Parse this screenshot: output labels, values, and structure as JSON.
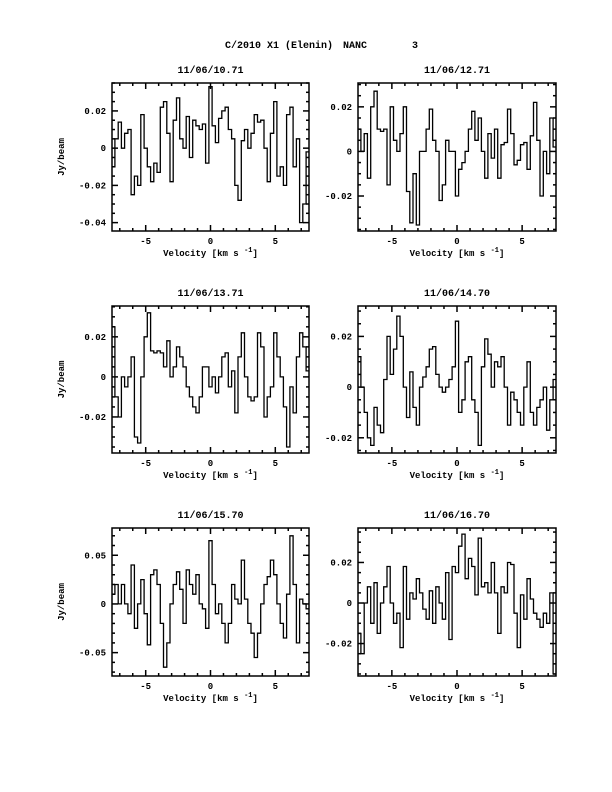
{
  "header": {
    "object": "C/2010 X1 (Elenin)",
    "molecule": "NANC",
    "index": "3"
  },
  "chart_data": [
    {
      "type": "line",
      "step": true,
      "title": "11/06/10.71",
      "xlabel": "Velocity [km s-1]",
      "ylabel": "Jy/beam",
      "xlim": [
        -7.6,
        7.6
      ],
      "ylim": [
        -0.0445,
        0.035
      ],
      "xticks": [
        -5,
        0,
        5
      ],
      "xtick_labels": [
        "-5",
        "0",
        "5"
      ],
      "yticks": [
        -0.04,
        -0.02,
        0,
        0.02
      ],
      "ytick_labels": [
        "-0.04",
        "-0.02",
        "0",
        "0.02"
      ],
      "yminor": 0.005,
      "x_start": -7.5,
      "x_step": 0.25,
      "values": [
        -0.01,
        0.005,
        0.014,
        0.0,
        0.008,
        0.01,
        -0.025,
        -0.015,
        -0.02,
        0.018,
        0.0,
        -0.01,
        -0.018,
        -0.008,
        -0.013,
        0.022,
        0.025,
        0.008,
        -0.018,
        0.015,
        0.027,
        0.005,
        0.0,
        0.017,
        -0.005,
        0.015,
        0.012,
        0.01,
        0.013,
        -0.008,
        0.033,
        0.012,
        0.003,
        0.016,
        0.02,
        0.022,
        0.01,
        0.005,
        -0.02,
        -0.028,
        0.004,
        0.01,
        0.0,
        0.008,
        0.018,
        0.014,
        0.015,
        0.0,
        -0.018,
        0.008,
        0.025,
        -0.015,
        -0.01,
        -0.02,
        0.018,
        0.022,
        -0.01,
        0.005,
        -0.04,
        -0.03,
        -0.002
      ]
    },
    {
      "type": "line",
      "step": true,
      "title": "11/06/12.71",
      "xlabel": "Velocity [km s-1]",
      "ylabel": "",
      "xlim": [
        -7.6,
        7.6
      ],
      "ylim": [
        -0.0357,
        0.0307
      ],
      "xticks": [
        -5,
        0,
        5
      ],
      "xtick_labels": [
        "-5",
        "0",
        "5"
      ],
      "yticks": [
        -0.02,
        0,
        0.02
      ],
      "ytick_labels": [
        "-0.02",
        "0",
        "0.02"
      ],
      "yminor": 0.005,
      "x_start": -7.5,
      "x_step": 0.25,
      "values": [
        0.01,
        0.0,
        0.008,
        -0.012,
        0.02,
        0.027,
        0.01,
        0.009,
        0.01,
        -0.015,
        0.02,
        0.005,
        0.0,
        0.008,
        0.02,
        -0.018,
        -0.032,
        -0.01,
        -0.033,
        0.0,
        0.0,
        0.01,
        0.019,
        0.005,
        0.0,
        -0.022,
        -0.015,
        0.005,
        0.0,
        0.0,
        -0.02,
        -0.008,
        -0.005,
        0.0,
        0.01,
        0.018,
        0.005,
        0.015,
        0.0,
        -0.012,
        0.008,
        -0.003,
        0.01,
        -0.012,
        0.003,
        0.004,
        0.019,
        0.008,
        -0.006,
        -0.004,
        0.003,
        0.004,
        -0.008,
        0.007,
        0.022,
        0.005,
        -0.02,
        0.0,
        -0.01,
        0.015,
        0.002
      ]
    },
    {
      "type": "line",
      "step": true,
      "title": "11/06/13.71",
      "xlabel": "Velocity [km s-1]",
      "ylabel": "Jy/beam",
      "xlim": [
        -7.6,
        7.6
      ],
      "ylim": [
        -0.038,
        0.0354
      ],
      "xticks": [
        -5,
        0,
        5
      ],
      "xtick_labels": [
        "-5",
        "0",
        "5"
      ],
      "yticks": [
        -0.02,
        0,
        0.02
      ],
      "ytick_labels": [
        "-0.02",
        "0",
        "0.02"
      ],
      "yminor": 0.005,
      "x_start": -7.5,
      "x_step": 0.25,
      "values": [
        0.025,
        -0.01,
        -0.02,
        0.0,
        -0.005,
        0.0,
        0.01,
        -0.03,
        -0.033,
        0.0,
        0.02,
        0.032,
        0.013,
        0.012,
        0.013,
        0.012,
        0.005,
        0.018,
        0.0,
        0.005,
        0.015,
        0.01,
        0.005,
        -0.005,
        -0.01,
        -0.015,
        -0.018,
        -0.01,
        0.005,
        0.005,
        -0.005,
        0.0,
        -0.008,
        0.0,
        0.01,
        0.012,
        -0.005,
        0.003,
        -0.018,
        0.01,
        0.022,
        0.0,
        -0.01,
        -0.012,
        -0.01,
        0.022,
        0.015,
        -0.02,
        -0.01,
        -0.005,
        0.022,
        0.01,
        0.0,
        -0.015,
        -0.035,
        -0.005,
        -0.018,
        0.01,
        0.022,
        0.015,
        0.003
      ]
    },
    {
      "type": "line",
      "step": true,
      "title": "11/06/14.70",
      "xlabel": "Velocity [km s-1]",
      "ylabel": "",
      "xlim": [
        -7.6,
        7.6
      ],
      "ylim": [
        -0.026,
        0.032
      ],
      "xticks": [
        -5,
        0,
        5
      ],
      "xtick_labels": [
        "-5",
        "0",
        "5"
      ],
      "yticks": [
        -0.02,
        0,
        0.02
      ],
      "ytick_labels": [
        "-0.02",
        "0",
        "0.02"
      ],
      "yminor": 0.005,
      "x_start": -7.5,
      "x_step": 0.25,
      "values": [
        0.012,
        0.0,
        -0.01,
        -0.02,
        -0.023,
        -0.008,
        -0.015,
        -0.018,
        0.003,
        0.02,
        0.005,
        0.015,
        0.028,
        0.02,
        0.0,
        -0.012,
        0.006,
        -0.008,
        -0.015,
        0.0,
        0.004,
        0.008,
        0.015,
        0.016,
        0.005,
        0.0,
        -0.002,
        0.0,
        0.003,
        0.008,
        0.026,
        -0.01,
        -0.005,
        0.01,
        0.012,
        -0.005,
        -0.01,
        -0.023,
        0.008,
        0.019,
        0.013,
        0.0,
        0.01,
        0.008,
        0.012,
        0.0,
        -0.015,
        -0.002,
        -0.005,
        -0.01,
        -0.015,
        0.0,
        0.01,
        -0.01,
        -0.015,
        -0.008,
        -0.005,
        0.0,
        -0.017,
        -0.005,
        0.003
      ]
    },
    {
      "type": "line",
      "step": true,
      "title": "11/06/15.70",
      "xlabel": "Velocity [km s-1]",
      "ylabel": "Jy/beam",
      "xlim": [
        -7.6,
        7.6
      ],
      "ylim": [
        -0.074,
        0.078
      ],
      "xticks": [
        -5,
        0,
        5
      ],
      "xtick_labels": [
        "-5",
        "0",
        "5"
      ],
      "yticks": [
        -0.05,
        0,
        0.05
      ],
      "ytick_labels": [
        "-0.05",
        "0",
        "0.05"
      ],
      "yminor": 0.01,
      "x_start": -7.5,
      "x_step": 0.25,
      "values": [
        0.01,
        0.02,
        0.0,
        0.02,
        0.0,
        -0.01,
        0.04,
        -0.025,
        0.0,
        0.025,
        -0.01,
        -0.042,
        0.03,
        0.035,
        0.02,
        -0.02,
        -0.065,
        -0.04,
        0.0,
        0.02,
        0.033,
        0.015,
        -0.02,
        0.035,
        0.02,
        0.01,
        0.03,
        0.0,
        -0.005,
        -0.025,
        0.065,
        0.02,
        -0.01,
        0.0,
        -0.02,
        -0.04,
        -0.02,
        0.02,
        0.005,
        0.0,
        0.045,
        0.005,
        -0.02,
        -0.03,
        -0.055,
        -0.03,
        0.0,
        0.02,
        0.028,
        0.045,
        0.03,
        0.0,
        -0.02,
        -0.035,
        0.01,
        0.07,
        0.02,
        -0.04,
        0.005,
        0.0,
        -0.005
      ]
    },
    {
      "type": "line",
      "step": true,
      "title": "11/06/16.70",
      "xlabel": "Velocity [km s-1]",
      "ylabel": "",
      "xlim": [
        -7.6,
        7.6
      ],
      "ylim": [
        -0.036,
        0.037
      ],
      "xticks": [
        -5,
        0,
        5
      ],
      "xtick_labels": [
        "-5",
        "0",
        "5"
      ],
      "yticks": [
        -0.02,
        0,
        0.02
      ],
      "ytick_labels": [
        "-0.02",
        "0",
        "0.02"
      ],
      "yminor": 0.005,
      "x_start": -7.5,
      "x_step": 0.25,
      "values": [
        -0.015,
        -0.025,
        0.0,
        0.008,
        -0.01,
        0.01,
        -0.015,
        0.0,
        0.008,
        0.018,
        0.0,
        -0.01,
        -0.005,
        -0.022,
        0.018,
        -0.008,
        0.005,
        0.002,
        0.012,
        0.005,
        -0.003,
        -0.008,
        0.006,
        -0.01,
        0.008,
        0.0,
        -0.008,
        0.015,
        -0.018,
        0.018,
        0.015,
        0.028,
        0.034,
        0.012,
        0.022,
        0.018,
        0.004,
        0.032,
        0.008,
        0.01,
        0.005,
        0.02,
        0.005,
        -0.015,
        0.008,
        0.005,
        0.02,
        0.019,
        -0.005,
        -0.022,
        0.004,
        -0.008,
        0.012,
        0.002,
        -0.005,
        -0.008,
        -0.012,
        -0.005,
        -0.01,
        0.005,
        -0.035
      ]
    }
  ]
}
